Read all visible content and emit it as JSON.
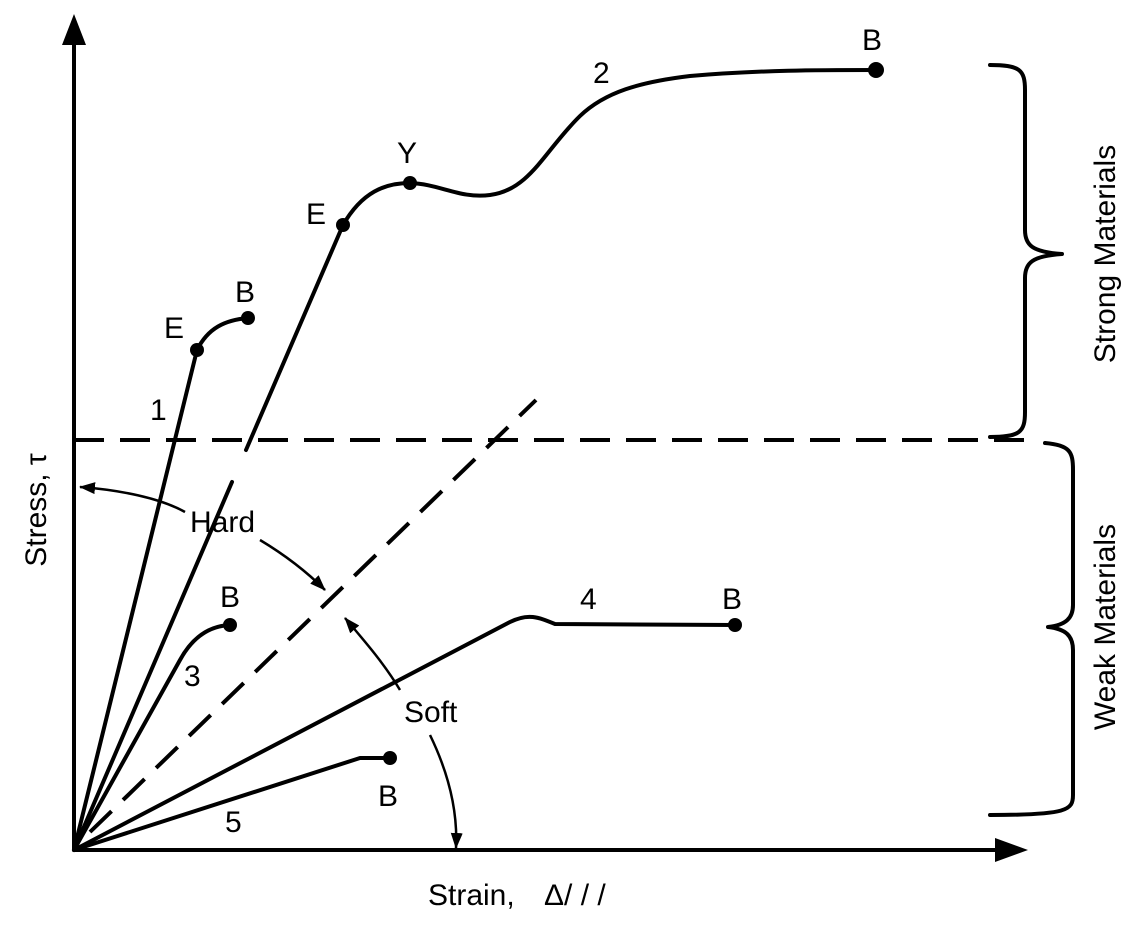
{
  "axes": {
    "y_label": "Stress, τ",
    "x_label_prefix": "Strain,",
    "x_label_symbol": "Δ/ / /"
  },
  "curves": [
    {
      "id": "1",
      "label": "1",
      "points": [
        {
          "label": "E"
        },
        {
          "label": "B"
        }
      ]
    },
    {
      "id": "2",
      "label": "2",
      "points": [
        {
          "label": "E"
        },
        {
          "label": "Y"
        },
        {
          "label": "B"
        }
      ]
    },
    {
      "id": "3",
      "label": "3",
      "points": [
        {
          "label": "B"
        }
      ]
    },
    {
      "id": "4",
      "label": "4",
      "points": [
        {
          "label": "B"
        }
      ]
    },
    {
      "id": "5",
      "label": "5",
      "points": [
        {
          "label": "B"
        }
      ]
    }
  ],
  "annotations": {
    "hard": "Hard",
    "soft": "Soft",
    "strong_materials": "Strong Materials",
    "weak_materials": "Weak Materials"
  }
}
